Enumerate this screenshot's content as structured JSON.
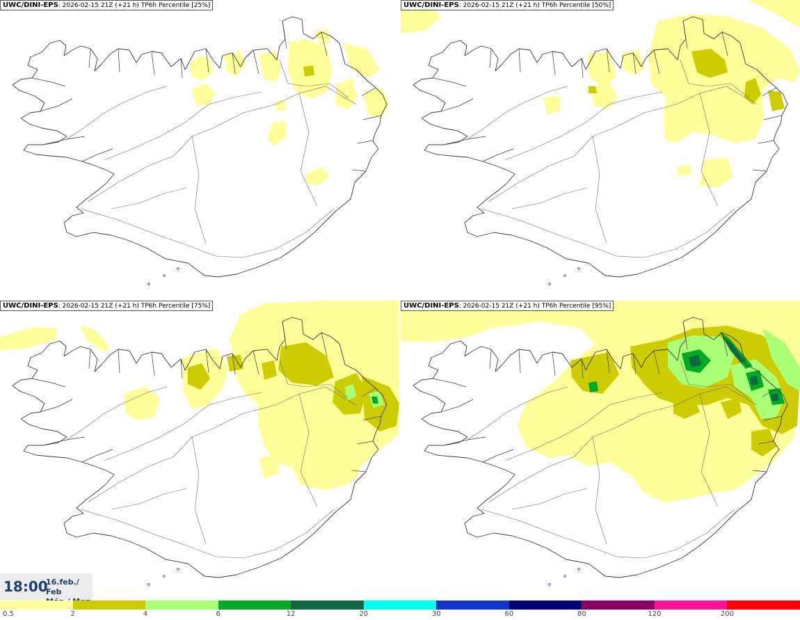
{
  "panels": [
    {
      "model": "UWC/DINI-EPS",
      "run": ": 2026-02-15 21Z (+21 h) ",
      "field": "TP6h Percentile [25%]",
      "level": 0
    },
    {
      "model": "UWC/DINI-EPS",
      "run": ": 2026-02-15 21Z (+21 h) ",
      "field": "TP6h Percentile [50%]",
      "level": 1
    },
    {
      "model": "UWC/DINI-EPS",
      "run": ": 2026-02-15 21Z (+21 h) ",
      "field": "TP6h Percentile [75%]",
      "level": 2
    },
    {
      "model": "UWC/DINI-EPS",
      "run": ": 2026-02-15 21Z (+21 h) ",
      "field": "TP6h Percentile [95%]",
      "level": 3
    }
  ],
  "valid": {
    "time": "18:00",
    "date_line1": "16.feb./ Feb",
    "date_line2": "Mán./ Mon"
  },
  "legend": {
    "ticks": [
      "0.5",
      "2",
      "4",
      "6",
      "12",
      "20",
      "30",
      "60",
      "80",
      "120",
      "200"
    ],
    "colors": [
      "#ffff99",
      "#cccc00",
      "#aaff77",
      "#00aa22",
      "#116644",
      "#00ffee",
      "#1133cc",
      "#000077",
      "#880066",
      "#ff1199",
      "#ff0000"
    ]
  },
  "colors": {
    "border": "#555555",
    "label_text": "#1c3f6e",
    "time_bg": "#ececec"
  }
}
